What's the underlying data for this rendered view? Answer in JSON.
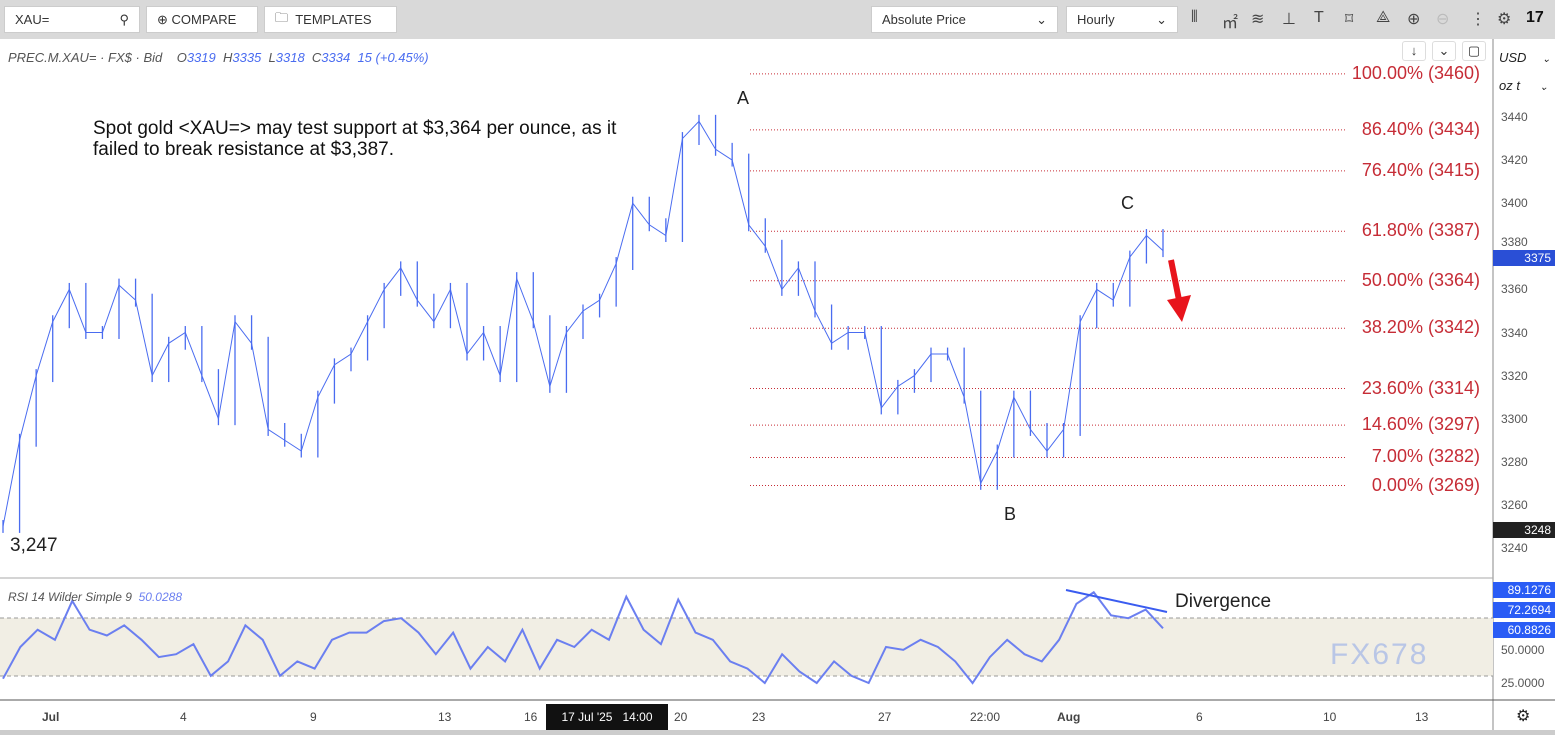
{
  "toolbar": {
    "symbol": "XAU=",
    "compare": "COMPARE",
    "templates": "TEMPLATES",
    "price_mode": "Absolute Price",
    "interval": "Hourly",
    "icons": [
      "candlestick-icon",
      "indicators-icon",
      "studies-icon",
      "drawing-icon",
      "text-icon",
      "shape-icon",
      "pattern-icon",
      "zoom-in-icon",
      "zoom-out-icon",
      "more-icon",
      "settings-icon",
      "tradingview-logo"
    ]
  },
  "legend": {
    "instrument": "PREC.M.XAU= · FX$ · Bid",
    "o_label": "O",
    "o": "3319",
    "h_label": "H",
    "h": "3335",
    "l_label": "L",
    "l": "3318",
    "c_label": "C",
    "c": "3334",
    "change": "15 (+0.45%)"
  },
  "axis_units": {
    "currency": "USD",
    "unit": "oz t"
  },
  "annotations": {
    "note": "Spot gold <XAU=> may test support at $3,364 per ounce, as it failed to break resistance at $3,387.",
    "A": "A",
    "B": "B",
    "C": "C",
    "low_label": "3,247",
    "divergence": "Divergence",
    "arrow_color": "#e8141c"
  },
  "rsi": {
    "label": "RSI 14 Wilder Simple 9",
    "value": "50.0288",
    "tags": [
      "89.1276",
      "72.2694",
      "60.8826"
    ],
    "ticks": [
      "50.0000",
      "25.0000"
    ],
    "color": "#6b7ff0"
  },
  "crosshair": {
    "date": "17 Jul '25",
    "time": "14:00"
  },
  "current_price": "3375",
  "low_tag": "3248",
  "watermark": "FX678",
  "chart_data": {
    "type": "line",
    "title": "",
    "ylim": [
      3230,
      3470
    ],
    "yticks": [
      3440,
      3420,
      3400,
      3380,
      3360,
      3340,
      3320,
      3300,
      3280,
      3260,
      3240
    ],
    "xticks": [
      "Jul",
      "4",
      "9",
      "13",
      "16",
      "20",
      "23",
      "27",
      "22:00",
      "Aug",
      "6",
      "10",
      "13"
    ],
    "grid": false,
    "series_color": "#4a6cf0",
    "price": [
      3250,
      3290,
      3320,
      3345,
      3360,
      3340,
      3340,
      3362,
      3355,
      3320,
      3335,
      3340,
      3320,
      3300,
      3345,
      3335,
      3295,
      3290,
      3285,
      3310,
      3325,
      3330,
      3345,
      3360,
      3370,
      3355,
      3345,
      3360,
      3330,
      3340,
      3320,
      3365,
      3345,
      3315,
      3340,
      3350,
      3355,
      3372,
      3400,
      3390,
      3385,
      3430,
      3438,
      3425,
      3420,
      3390,
      3380,
      3360,
      3370,
      3350,
      3335,
      3340,
      3340,
      3305,
      3315,
      3320,
      3330,
      3330,
      3310,
      3270,
      3285,
      3310,
      3295,
      3285,
      3295,
      3345,
      3360,
      3355,
      3375,
      3385,
      3378
    ],
    "fib_levels": [
      {
        "label": "100.00% (3460)",
        "price": 3460
      },
      {
        "label": "86.40% (3434)",
        "price": 3434
      },
      {
        "label": "76.40% (3415)",
        "price": 3415
      },
      {
        "label": "61.80% (3387)",
        "price": 3387
      },
      {
        "label": "50.00% (3364)",
        "price": 3364
      },
      {
        "label": "38.20% (3342)",
        "price": 3342
      },
      {
        "label": "23.60% (3314)",
        "price": 3314
      },
      {
        "label": "14.60% (3297)",
        "price": 3297
      },
      {
        "label": "7.00% (3282)",
        "price": 3282
      },
      {
        "label": "0.00% (3269)",
        "price": 3269
      }
    ],
    "fib_color": "#c62c36",
    "rsi_values": [
      28,
      50,
      62,
      55,
      82,
      62,
      58,
      65,
      55,
      43,
      45,
      52,
      30,
      40,
      65,
      55,
      30,
      40,
      35,
      55,
      60,
      60,
      68,
      70,
      60,
      45,
      60,
      35,
      50,
      40,
      62,
      35,
      55,
      50,
      62,
      55,
      85,
      62,
      52,
      83,
      60,
      55,
      40,
      35,
      25,
      45,
      33,
      25,
      40,
      30,
      25,
      50,
      48,
      55,
      50,
      40,
      25,
      43,
      55,
      45,
      40,
      55,
      80,
      88,
      72,
      70,
      76,
      63
    ],
    "rsi_ylim": [
      0,
      100
    ],
    "rsi_band": [
      30,
      70
    ]
  }
}
